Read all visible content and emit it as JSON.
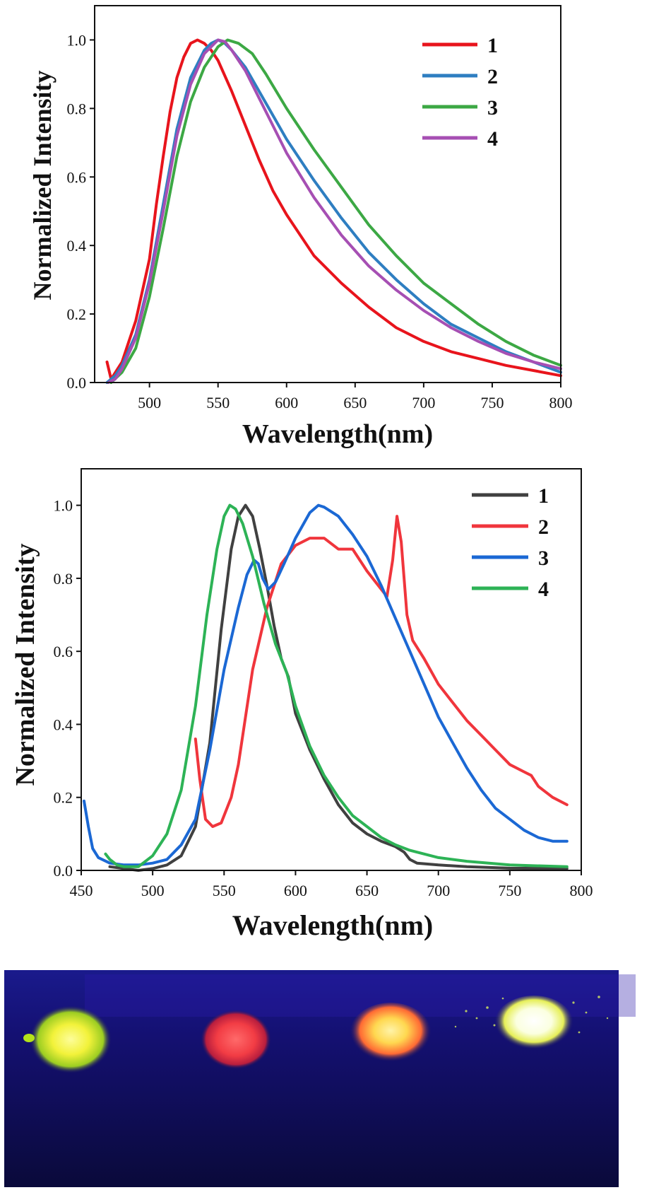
{
  "chart_data": [
    {
      "type": "line",
      "xlabel": "Wavelength(nm)",
      "ylabel": "Normalized Intensity",
      "xlim": [
        460,
        800
      ],
      "ylim": [
        0,
        1.1
      ],
      "xticks": [
        500,
        550,
        600,
        650,
        700,
        750,
        800
      ],
      "yticks": [
        "0.0",
        "0.2",
        "0.4",
        "0.6",
        "0.8",
        "1.0"
      ],
      "legend_position": "top-right",
      "series": [
        {
          "name": "1",
          "color": "#e8141c",
          "points": [
            [
              469,
              0.06
            ],
            [
              472,
              0.01
            ],
            [
              480,
              0.06
            ],
            [
              490,
              0.18
            ],
            [
              500,
              0.36
            ],
            [
              505,
              0.52
            ],
            [
              510,
              0.66
            ],
            [
              515,
              0.79
            ],
            [
              520,
              0.89
            ],
            [
              525,
              0.95
            ],
            [
              530,
              0.99
            ],
            [
              535,
              1.0
            ],
            [
              540,
              0.99
            ],
            [
              545,
              0.97
            ],
            [
              550,
              0.94
            ],
            [
              560,
              0.85
            ],
            [
              570,
              0.75
            ],
            [
              580,
              0.65
            ],
            [
              590,
              0.56
            ],
            [
              600,
              0.49
            ],
            [
              620,
              0.37
            ],
            [
              640,
              0.29
            ],
            [
              660,
              0.22
            ],
            [
              680,
              0.16
            ],
            [
              700,
              0.12
            ],
            [
              720,
              0.09
            ],
            [
              740,
              0.07
            ],
            [
              760,
              0.05
            ],
            [
              780,
              0.035
            ],
            [
              800,
              0.02
            ]
          ]
        },
        {
          "name": "2",
          "color": "#2e7ec1",
          "points": [
            [
              469,
              0.0
            ],
            [
              475,
              0.02
            ],
            [
              480,
              0.05
            ],
            [
              490,
              0.14
            ],
            [
              500,
              0.3
            ],
            [
              510,
              0.52
            ],
            [
              520,
              0.74
            ],
            [
              530,
              0.89
            ],
            [
              540,
              0.97
            ],
            [
              545,
              0.99
            ],
            [
              550,
              1.0
            ],
            [
              555,
              0.99
            ],
            [
              560,
              0.97
            ],
            [
              570,
              0.92
            ],
            [
              580,
              0.85
            ],
            [
              590,
              0.78
            ],
            [
              600,
              0.71
            ],
            [
              620,
              0.59
            ],
            [
              640,
              0.48
            ],
            [
              660,
              0.38
            ],
            [
              680,
              0.3
            ],
            [
              700,
              0.23
            ],
            [
              720,
              0.17
            ],
            [
              740,
              0.13
            ],
            [
              760,
              0.09
            ],
            [
              780,
              0.06
            ],
            [
              800,
              0.03
            ]
          ]
        },
        {
          "name": "3",
          "color": "#3ca844",
          "points": [
            [
              472,
              0.0
            ],
            [
              480,
              0.03
            ],
            [
              490,
              0.1
            ],
            [
              500,
              0.25
            ],
            [
              510,
              0.45
            ],
            [
              520,
              0.66
            ],
            [
              530,
              0.82
            ],
            [
              540,
              0.92
            ],
            [
              550,
              0.98
            ],
            [
              557,
              1.0
            ],
            [
              565,
              0.99
            ],
            [
              575,
              0.96
            ],
            [
              585,
              0.9
            ],
            [
              600,
              0.8
            ],
            [
              620,
              0.68
            ],
            [
              640,
              0.57
            ],
            [
              660,
              0.46
            ],
            [
              680,
              0.37
            ],
            [
              700,
              0.29
            ],
            [
              720,
              0.23
            ],
            [
              740,
              0.17
            ],
            [
              760,
              0.12
            ],
            [
              780,
              0.08
            ],
            [
              800,
              0.05
            ]
          ]
        },
        {
          "name": "4",
          "color": "#a64fb3",
          "points": [
            [
              470,
              0.0
            ],
            [
              475,
              0.01
            ],
            [
              480,
              0.04
            ],
            [
              490,
              0.13
            ],
            [
              500,
              0.29
            ],
            [
              510,
              0.5
            ],
            [
              520,
              0.72
            ],
            [
              530,
              0.87
            ],
            [
              540,
              0.96
            ],
            [
              550,
              1.0
            ],
            [
              555,
              0.995
            ],
            [
              560,
              0.97
            ],
            [
              570,
              0.91
            ],
            [
              580,
              0.83
            ],
            [
              590,
              0.75
            ],
            [
              600,
              0.67
            ],
            [
              620,
              0.54
            ],
            [
              640,
              0.43
            ],
            [
              660,
              0.34
            ],
            [
              680,
              0.27
            ],
            [
              700,
              0.21
            ],
            [
              720,
              0.16
            ],
            [
              740,
              0.12
            ],
            [
              760,
              0.085
            ],
            [
              780,
              0.06
            ],
            [
              800,
              0.04
            ]
          ]
        }
      ]
    },
    {
      "type": "line",
      "xlabel": "Wavelength(nm)",
      "ylabel": "Normalized Intensity",
      "xlim": [
        450,
        800
      ],
      "ylim": [
        0,
        1.1
      ],
      "xticks": [
        450,
        500,
        550,
        600,
        650,
        700,
        750,
        800
      ],
      "yticks": [
        "0.0",
        "0.2",
        "0.4",
        "0.6",
        "0.8",
        "1.0"
      ],
      "legend_position": "top-right",
      "series": [
        {
          "name": "1",
          "color": "#404040",
          "points": [
            [
              470,
              0.01
            ],
            [
              490,
              0.0
            ],
            [
              500,
              0.005
            ],
            [
              510,
              0.015
            ],
            [
              520,
              0.04
            ],
            [
              530,
              0.12
            ],
            [
              540,
              0.35
            ],
            [
              548,
              0.66
            ],
            [
              555,
              0.88
            ],
            [
              560,
              0.97
            ],
            [
              565,
              1.0
            ],
            [
              570,
              0.97
            ],
            [
              575,
              0.88
            ],
            [
              580,
              0.78
            ],
            [
              585,
              0.67
            ],
            [
              590,
              0.58
            ],
            [
              595,
              0.53
            ],
            [
              600,
              0.43
            ],
            [
              610,
              0.33
            ],
            [
              620,
              0.25
            ],
            [
              630,
              0.18
            ],
            [
              640,
              0.13
            ],
            [
              650,
              0.1
            ],
            [
              660,
              0.08
            ],
            [
              670,
              0.065
            ],
            [
              676,
              0.05
            ],
            [
              680,
              0.03
            ],
            [
              685,
              0.02
            ],
            [
              700,
              0.015
            ],
            [
              720,
              0.01
            ],
            [
              750,
              0.006
            ],
            [
              790,
              0.005
            ]
          ]
        },
        {
          "name": "2",
          "color": "#f0353c",
          "points": [
            [
              530,
              0.36
            ],
            [
              533,
              0.25
            ],
            [
              537,
              0.14
            ],
            [
              542,
              0.12
            ],
            [
              548,
              0.13
            ],
            [
              555,
              0.2
            ],
            [
              560,
              0.29
            ],
            [
              565,
              0.42
            ],
            [
              570,
              0.55
            ],
            [
              580,
              0.72
            ],
            [
              590,
              0.84
            ],
            [
              600,
              0.89
            ],
            [
              610,
              0.91
            ],
            [
              620,
              0.91
            ],
            [
              630,
              0.88
            ],
            [
              640,
              0.88
            ],
            [
              650,
              0.82
            ],
            [
              660,
              0.77
            ],
            [
              664,
              0.75
            ],
            [
              668,
              0.85
            ],
            [
              671,
              0.97
            ],
            [
              674,
              0.9
            ],
            [
              678,
              0.7
            ],
            [
              682,
              0.63
            ],
            [
              690,
              0.58
            ],
            [
              700,
              0.51
            ],
            [
              710,
              0.46
            ],
            [
              720,
              0.41
            ],
            [
              730,
              0.37
            ],
            [
              740,
              0.33
            ],
            [
              750,
              0.29
            ],
            [
              760,
              0.27
            ],
            [
              765,
              0.26
            ],
            [
              770,
              0.23
            ],
            [
              780,
              0.2
            ],
            [
              790,
              0.18
            ]
          ]
        },
        {
          "name": "3",
          "color": "#1b68d4",
          "points": [
            [
              452,
              0.19
            ],
            [
              455,
              0.12
            ],
            [
              458,
              0.06
            ],
            [
              462,
              0.035
            ],
            [
              470,
              0.02
            ],
            [
              480,
              0.015
            ],
            [
              490,
              0.015
            ],
            [
              500,
              0.02
            ],
            [
              510,
              0.03
            ],
            [
              520,
              0.07
            ],
            [
              530,
              0.14
            ],
            [
              540,
              0.33
            ],
            [
              550,
              0.55
            ],
            [
              560,
              0.72
            ],
            [
              566,
              0.81
            ],
            [
              571,
              0.85
            ],
            [
              574,
              0.84
            ],
            [
              577,
              0.8
            ],
            [
              581,
              0.77
            ],
            [
              586,
              0.79
            ],
            [
              592,
              0.84
            ],
            [
              600,
              0.91
            ],
            [
              610,
              0.98
            ],
            [
              616,
              1.0
            ],
            [
              620,
              0.995
            ],
            [
              630,
              0.97
            ],
            [
              640,
              0.92
            ],
            [
              650,
              0.86
            ],
            [
              660,
              0.78
            ],
            [
              670,
              0.69
            ],
            [
              680,
              0.6
            ],
            [
              690,
              0.51
            ],
            [
              700,
              0.42
            ],
            [
              710,
              0.35
            ],
            [
              720,
              0.28
            ],
            [
              730,
              0.22
            ],
            [
              740,
              0.17
            ],
            [
              750,
              0.14
            ],
            [
              760,
              0.11
            ],
            [
              770,
              0.09
            ],
            [
              780,
              0.08
            ],
            [
              790,
              0.08
            ]
          ]
        },
        {
          "name": "4",
          "color": "#2db356",
          "points": [
            [
              467,
              0.045
            ],
            [
              470,
              0.03
            ],
            [
              475,
              0.015
            ],
            [
              480,
              0.01
            ],
            [
              490,
              0.01
            ],
            [
              500,
              0.04
            ],
            [
              510,
              0.1
            ],
            [
              520,
              0.22
            ],
            [
              530,
              0.45
            ],
            [
              538,
              0.7
            ],
            [
              545,
              0.88
            ],
            [
              550,
              0.97
            ],
            [
              554,
              1.0
            ],
            [
              558,
              0.99
            ],
            [
              563,
              0.95
            ],
            [
              570,
              0.86
            ],
            [
              578,
              0.73
            ],
            [
              586,
              0.62
            ],
            [
              594,
              0.54
            ],
            [
              600,
              0.45
            ],
            [
              610,
              0.34
            ],
            [
              620,
              0.26
            ],
            [
              630,
              0.2
            ],
            [
              640,
              0.15
            ],
            [
              650,
              0.12
            ],
            [
              660,
              0.09
            ],
            [
              670,
              0.07
            ],
            [
              680,
              0.055
            ],
            [
              700,
              0.035
            ],
            [
              720,
              0.025
            ],
            [
              750,
              0.015
            ],
            [
              790,
              0.01
            ]
          ]
        }
      ]
    }
  ],
  "photo": {
    "samples": [
      {
        "glow": "#f2f23a",
        "edge": "#b4e21a"
      },
      {
        "glow": "#ff4848",
        "edge": "#d61e32"
      },
      {
        "glow": "#ffe878",
        "edge": "#ff5d2e"
      },
      {
        "glow": "#ffffff",
        "edge": "#eaf25a"
      }
    ]
  }
}
